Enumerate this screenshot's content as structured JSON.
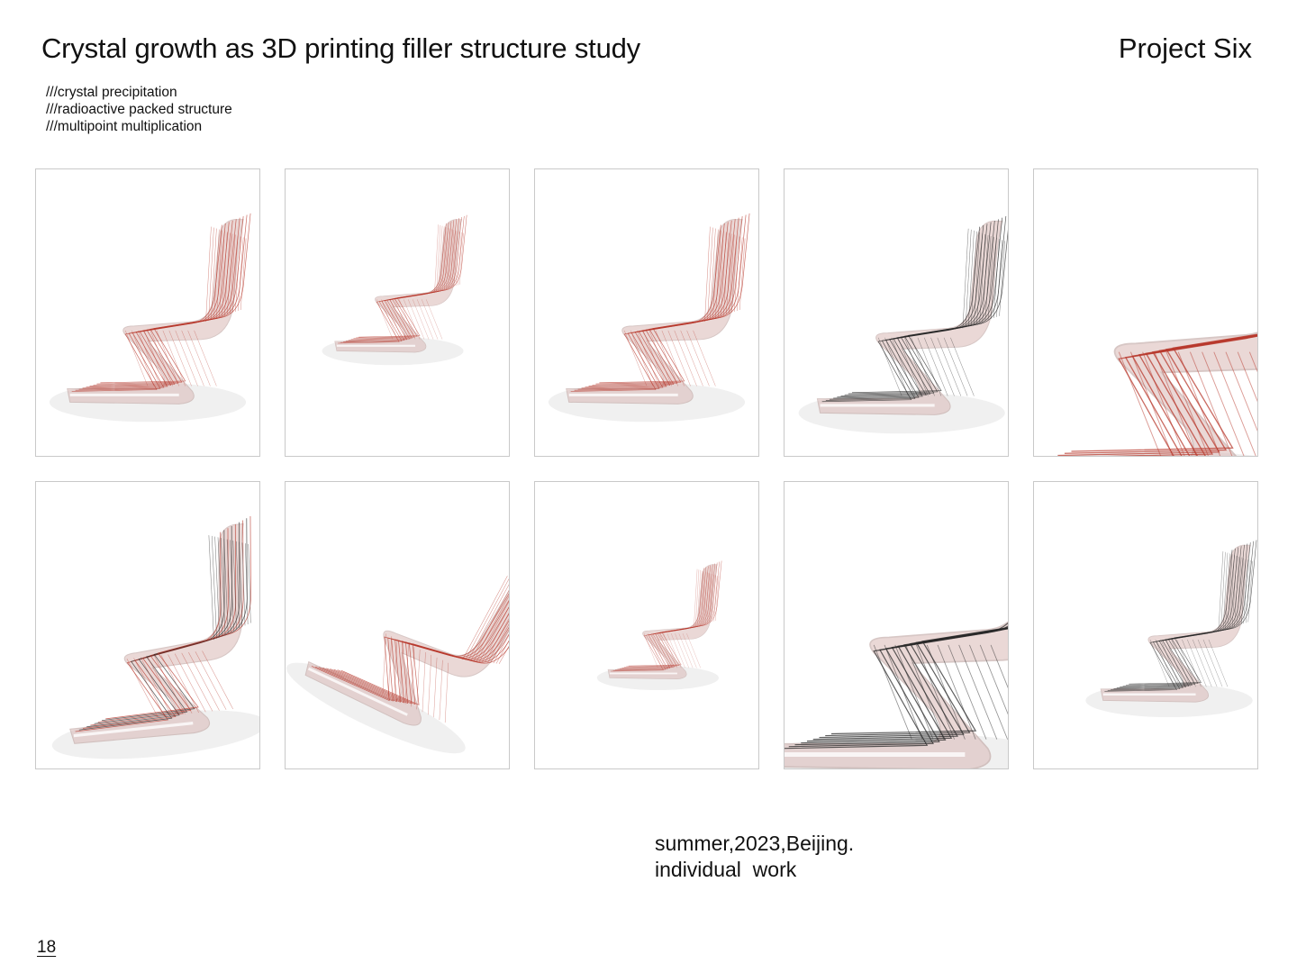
{
  "header": {
    "title": "Crystal growth as 3D printing filler structure study",
    "project_label": "Project Six"
  },
  "tags": [
    "///crystal precipitation",
    "///radioactive packed structure",
    "///multipoint multiplication"
  ],
  "gallery": {
    "panels": [
      {
        "variant": "chair-red-side"
      },
      {
        "variant": "chair-red-small"
      },
      {
        "variant": "chair-red-side"
      },
      {
        "variant": "chair-black-front"
      },
      {
        "variant": "chair-red-closeup"
      },
      {
        "variant": "chair-mixed-tilted"
      },
      {
        "variant": "chair-red-top"
      },
      {
        "variant": "chair-pair-top"
      },
      {
        "variant": "chair-black-closeup"
      },
      {
        "variant": "chair-black-small"
      }
    ]
  },
  "caption": {
    "line1": "summer,2023,Beijing.",
    "line2": "individual  work"
  },
  "page_number": "18",
  "colors": {
    "wire_red": "#b83a2e",
    "wire_black": "#2a2a2a",
    "surface_pink": "#d9b9b6",
    "frame": "#c9c9c9"
  }
}
